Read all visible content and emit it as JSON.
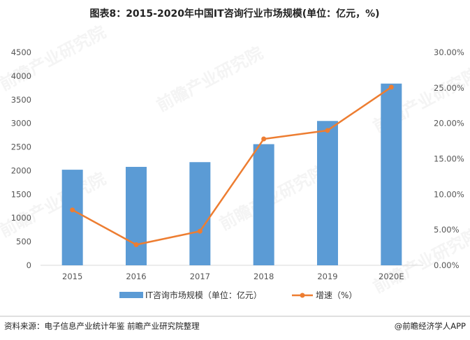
{
  "chart_data": {
    "type": "bar",
    "title": "图表8：2015-2020年中国IT咨询行业市场规模(单位：亿元，%)",
    "categories": [
      "2015",
      "2016",
      "2017",
      "2018",
      "2019",
      "2020E"
    ],
    "series": [
      {
        "name": "IT咨询市场规模（单位：亿元）",
        "type": "bar",
        "axis": "left",
        "color": "#5B9BD5",
        "values": [
          2020,
          2080,
          2180,
          2560,
          3050,
          3840
        ]
      },
      {
        "name": "增速（%）",
        "type": "line",
        "axis": "right",
        "color": "#ED7D31",
        "values": [
          7.8,
          2.9,
          4.8,
          17.8,
          19.0,
          25.1
        ]
      }
    ],
    "left_axis": {
      "ylim": [
        0,
        4500
      ],
      "ticks": [
        "0",
        "500",
        "1000",
        "1500",
        "2000",
        "2500",
        "3000",
        "3500",
        "4000",
        "4500"
      ]
    },
    "right_axis": {
      "ylim": [
        0,
        30
      ],
      "ticks": [
        "0.00%",
        "5.00%",
        "10.00%",
        "15.00%",
        "20.00%",
        "25.00%",
        "30.00%"
      ]
    },
    "grid": false,
    "legend": "bottom"
  },
  "watermark": "前瞻产业研究院",
  "footer": {
    "source": "资料来源：电子信息产业统计年鉴 前瞻产业研究院整理",
    "brand": "@前瞻经济学人APP"
  }
}
